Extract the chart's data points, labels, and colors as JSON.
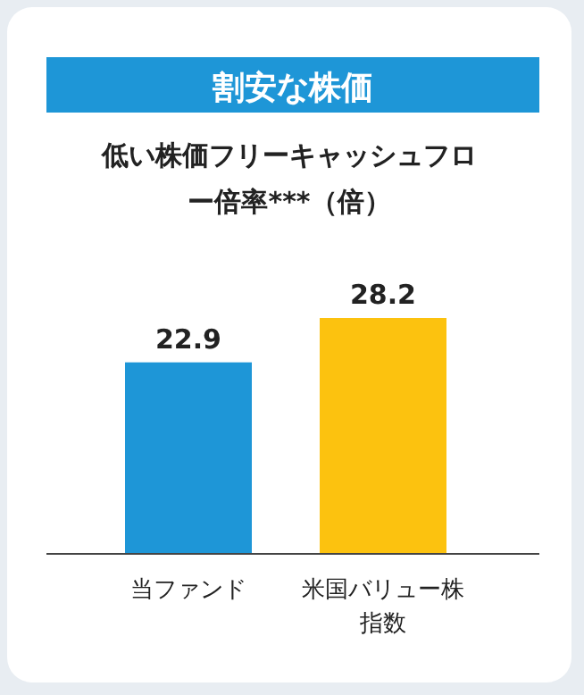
{
  "chart_data": {
    "type": "bar",
    "title": "割安な株価",
    "subtitle": "低い株価フリーキャッシュフロー倍率***（倍）",
    "categories": [
      "当ファンド",
      "米国バリュー株指数"
    ],
    "values": [
      22.9,
      28.2
    ],
    "colors": [
      "#1e96d7",
      "#fcc20f"
    ],
    "data_labels": true
  }
}
